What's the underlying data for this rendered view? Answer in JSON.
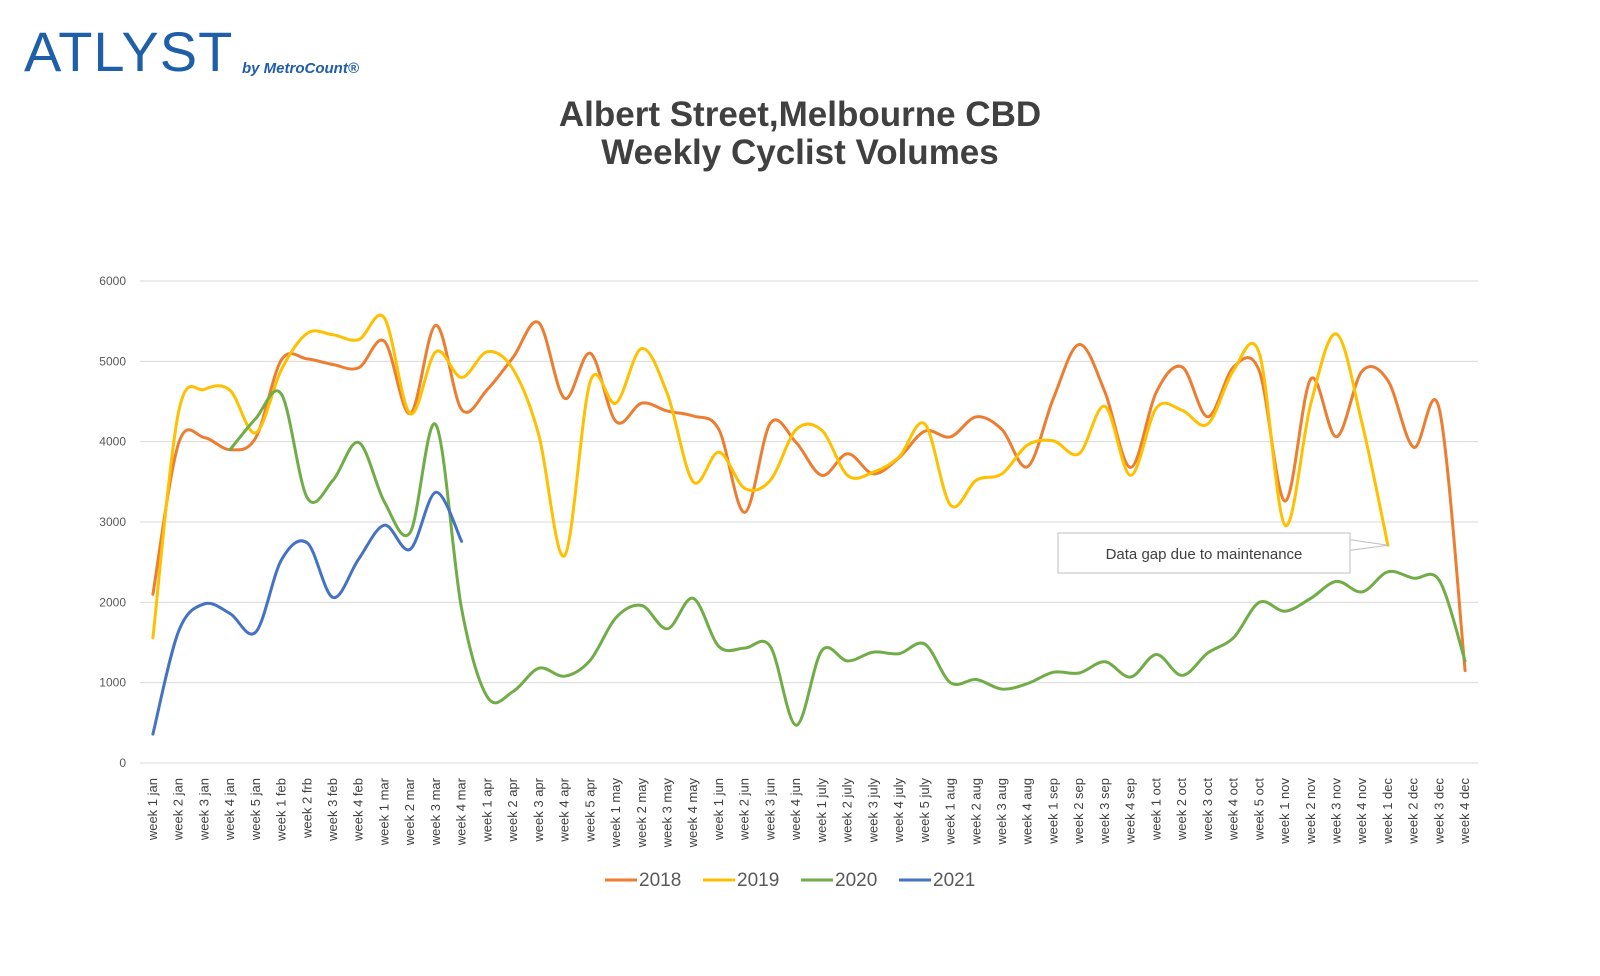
{
  "logo": {
    "brand": "ATLYST",
    "by": "by MetroCount®"
  },
  "colors": {
    "2018": "#ed7d31",
    "2019": "#ffc000",
    "2020": "#70ad47",
    "2021": "#4472c4",
    "grid": "#d9d9d9"
  },
  "chart_data": {
    "type": "line",
    "title": [
      "Albert Street,Melbourne CBD",
      "Weekly Cyclist Volumes"
    ],
    "xlabel": "",
    "ylabel": "",
    "ylim": [
      0,
      6000
    ],
    "yticks": [
      0,
      1000,
      2000,
      3000,
      4000,
      5000,
      6000
    ],
    "grid": true,
    "legend": "bottom",
    "categories": [
      "week 1 jan",
      "week 2 jan",
      "week 3 jan",
      "week 4 jan",
      "week 5 jan",
      "week 1 feb",
      "week 2 frb",
      "week 3 feb",
      "week 4 feb",
      "week 1 mar",
      "week 2  mar",
      "week 3 mar",
      "week 4 mar",
      "week 1 apr",
      "week 2 apr",
      "week 3 apr",
      "week 4 apr",
      "week 5 apr",
      "week 1 may",
      "week 2 may",
      "week 3 may",
      "week 4 may",
      "week 1 jun",
      "week 2 jun",
      "week 3 jun",
      "week 4 jun",
      "week 1 july",
      "week 2 july",
      "week 3 july",
      "week 4 july",
      "week 5 july",
      "week 1 aug",
      "week 2 aug",
      "week 3 aug",
      "week 4 aug",
      "week 1 sep",
      "week 2 sep",
      "week 3 sep",
      "week 4 sep",
      "week 1 oct",
      "week 2 oct",
      "week 3 oct",
      "week 4 oct",
      "week 5 oct",
      "week 1 nov",
      "week 2 nov",
      "week 3 nov",
      "week 4 nov",
      "week 1 dec",
      "week 2 dec",
      "week 3 dec",
      "week 4 dec"
    ],
    "series": [
      {
        "name": "2018",
        "values": [
          2100,
          3980,
          4050,
          3900,
          4050,
          5020,
          5030,
          4960,
          4920,
          5250,
          4350,
          5450,
          4400,
          4650,
          5050,
          5480,
          4540,
          5100,
          4250,
          4480,
          4380,
          4320,
          4150,
          3120,
          4230,
          3990,
          3580,
          3850,
          3600,
          3800,
          4130,
          4060,
          4310,
          4150,
          3690,
          4540,
          5210,
          4620,
          3680,
          4620,
          4930,
          4310,
          4930,
          4880,
          3260,
          4780,
          4060,
          4880,
          4760,
          3930,
          4400,
          1150
        ]
      },
      {
        "name": "2019",
        "values": [
          1560,
          4370,
          4650,
          4640,
          4110,
          4900,
          5350,
          5330,
          5270,
          5540,
          4350,
          5120,
          4800,
          5120,
          4900,
          4080,
          2580,
          4750,
          4480,
          5160,
          4590,
          3500,
          3870,
          3420,
          3520,
          4150,
          4140,
          3580,
          3620,
          3810,
          4220,
          3210,
          3520,
          3600,
          3960,
          4010,
          3850,
          4440,
          3580,
          4420,
          4390,
          4220,
          4890,
          5100,
          2960,
          4470,
          5340,
          4220,
          2710,
          null,
          null,
          null
        ]
      },
      {
        "name": "2020",
        "values": [
          null,
          null,
          null,
          3900,
          4290,
          4590,
          3300,
          3520,
          3990,
          3250,
          2870,
          4210,
          1920,
          820,
          890,
          1180,
          1080,
          1280,
          1810,
          1960,
          1670,
          2050,
          1450,
          1430,
          1450,
          470,
          1400,
          1270,
          1380,
          1360,
          1480,
          1000,
          1040,
          920,
          990,
          1130,
          1120,
          1260,
          1070,
          1350,
          1090,
          1370,
          1560,
          2000,
          1890,
          2050,
          2260,
          2130,
          2380,
          2300,
          2270,
          1270
        ]
      },
      {
        "name": "2021",
        "values": [
          360,
          1640,
          1980,
          1860,
          1630,
          2530,
          2740,
          2060,
          2540,
          2960,
          2660,
          3370,
          2760,
          null,
          null,
          null,
          null,
          null,
          null,
          null,
          null,
          null,
          null,
          null,
          null,
          null,
          null,
          null,
          null,
          null,
          null,
          null,
          null,
          null,
          null,
          null,
          null,
          null,
          null,
          null,
          null,
          null,
          null,
          null,
          null,
          null,
          null,
          null,
          null,
          null,
          null,
          null
        ]
      }
    ],
    "annotations": [
      {
        "text": "Data gap due to maintenance",
        "series": "2019",
        "category": "week 1 dec",
        "value": 2710
      }
    ]
  }
}
